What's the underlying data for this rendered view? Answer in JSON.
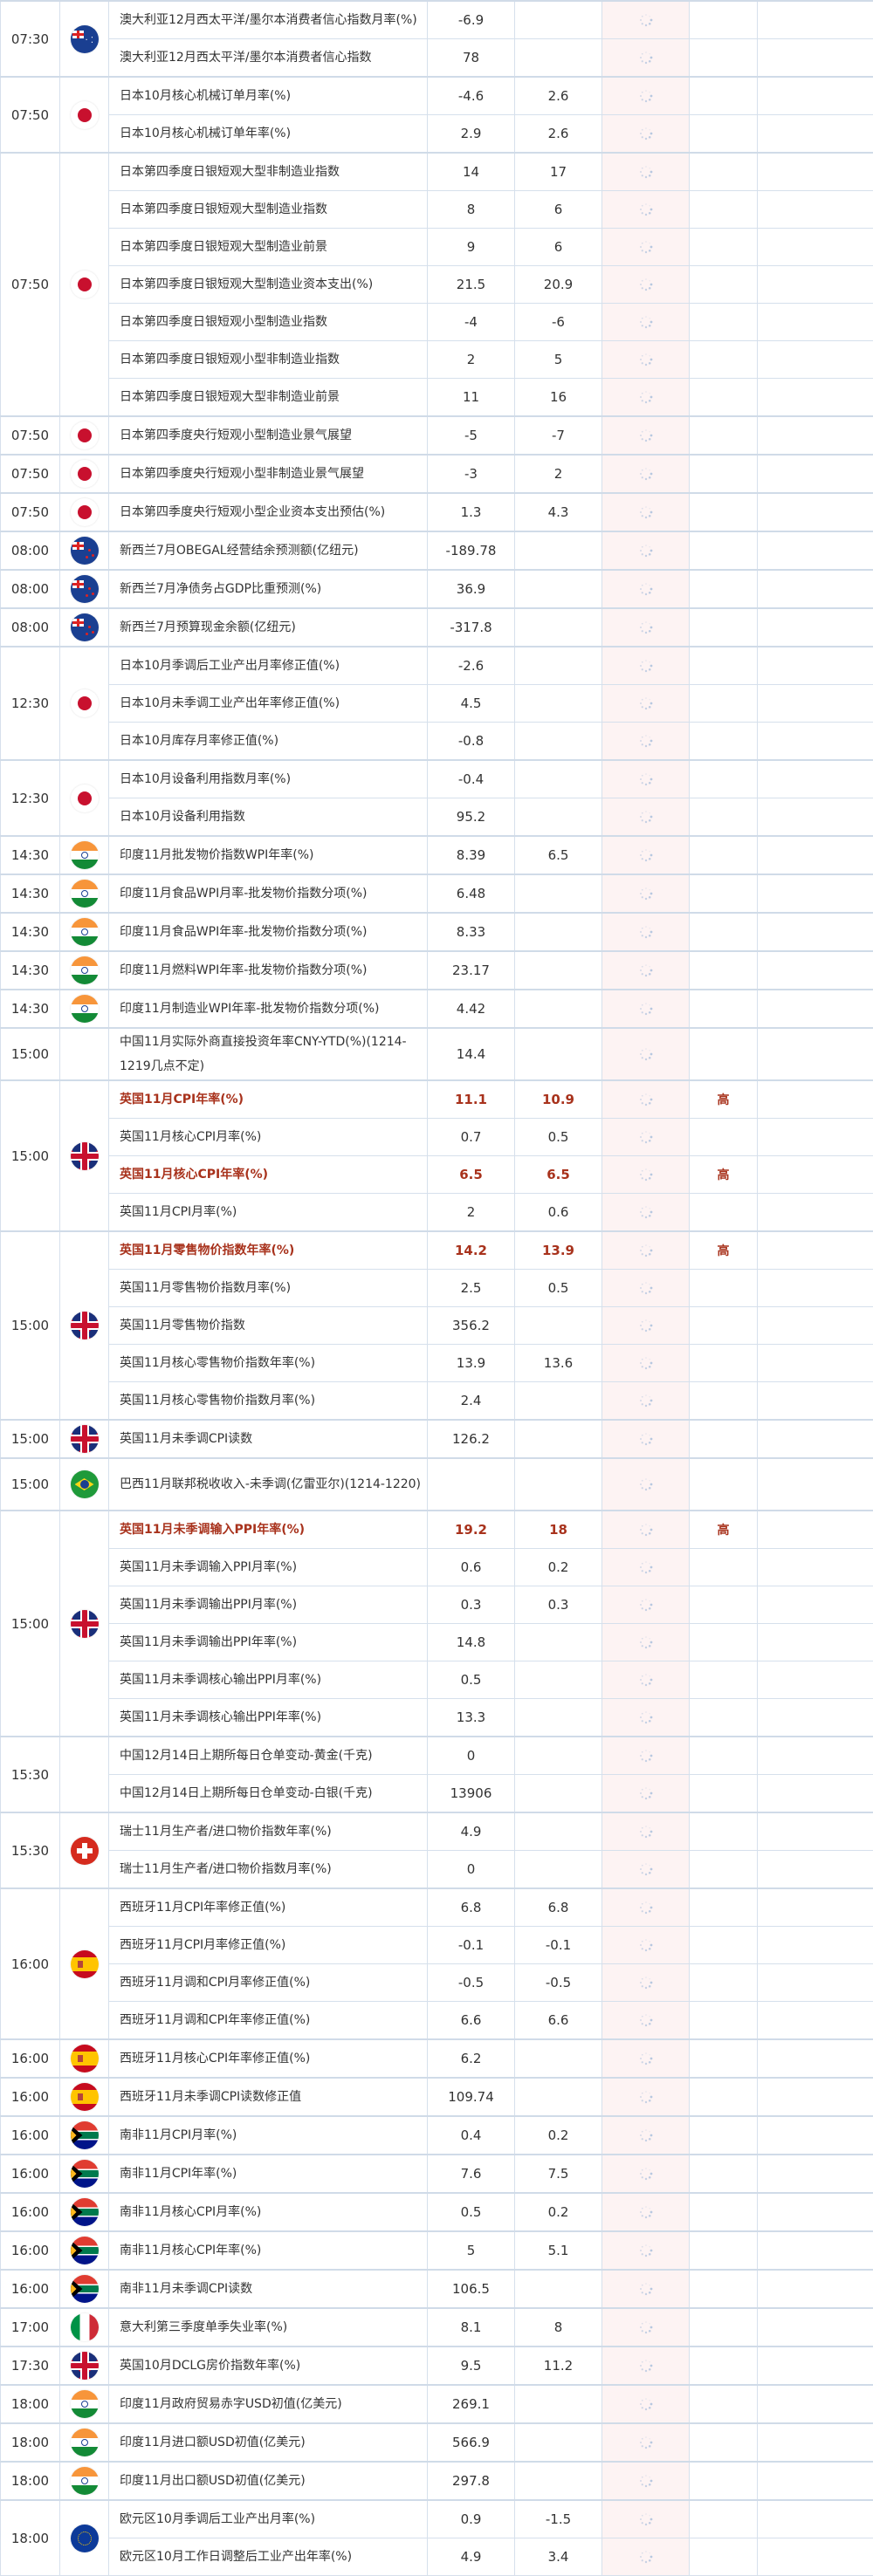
{
  "colors": {
    "highlight": "#a8321c",
    "grid": "#d6e0ec",
    "previous_bg": "#fdf3f3"
  },
  "groups": [
    {
      "time": "07:30",
      "flag": "flag-australia",
      "rows": [
        {
          "name": "澳大利亚12月西太平洋/墨尔本消费者信心指数月率(%)",
          "actual": "-6.9",
          "forecast": "",
          "importance": ""
        },
        {
          "name": "澳大利亚12月西太平洋/墨尔本消费者信心指数",
          "actual": "78",
          "forecast": "",
          "importance": ""
        }
      ]
    },
    {
      "time": "07:50",
      "flag": "flag-japan",
      "rows": [
        {
          "name": "日本10月核心机械订单月率(%)",
          "actual": "-4.6",
          "forecast": "2.6",
          "importance": ""
        },
        {
          "name": "日本10月核心机械订单年率(%)",
          "actual": "2.9",
          "forecast": "2.6",
          "importance": ""
        }
      ]
    },
    {
      "time": "07:50",
      "flag": "flag-japan",
      "rows": [
        {
          "name": "日本第四季度日银短观大型非制造业指数",
          "actual": "14",
          "forecast": "17",
          "importance": ""
        },
        {
          "name": "日本第四季度日银短观大型制造业指数",
          "actual": "8",
          "forecast": "6",
          "importance": ""
        },
        {
          "name": "日本第四季度日银短观大型制造业前景",
          "actual": "9",
          "forecast": "6",
          "importance": ""
        },
        {
          "name": "日本第四季度日银短观大型制造业资本支出(%)",
          "actual": "21.5",
          "forecast": "20.9",
          "importance": ""
        },
        {
          "name": "日本第四季度日银短观小型制造业指数",
          "actual": "-4",
          "forecast": "-6",
          "importance": ""
        },
        {
          "name": "日本第四季度日银短观小型非制造业指数",
          "actual": "2",
          "forecast": "5",
          "importance": ""
        },
        {
          "name": "日本第四季度日银短观大型非制造业前景",
          "actual": "11",
          "forecast": "16",
          "importance": ""
        }
      ]
    },
    {
      "time": "07:50",
      "flag": "flag-japan",
      "rows": [
        {
          "name": "日本第四季度央行短观小型制造业景气展望",
          "actual": "-5",
          "forecast": "-7",
          "importance": ""
        }
      ]
    },
    {
      "time": "07:50",
      "flag": "flag-japan",
      "rows": [
        {
          "name": "日本第四季度央行短观小型非制造业景气展望",
          "actual": "-3",
          "forecast": "2",
          "importance": ""
        }
      ]
    },
    {
      "time": "07:50",
      "flag": "flag-japan",
      "rows": [
        {
          "name": "日本第四季度央行短观小型企业资本支出预估(%)",
          "actual": "1.3",
          "forecast": "4.3",
          "importance": ""
        }
      ]
    },
    {
      "time": "08:00",
      "flag": "flag-new-zealand",
      "rows": [
        {
          "name": "新西兰7月OBEGAL经营结余预测额(亿纽元)",
          "actual": "-189.78",
          "forecast": "",
          "importance": ""
        }
      ]
    },
    {
      "time": "08:00",
      "flag": "flag-new-zealand",
      "rows": [
        {
          "name": "新西兰7月净债务占GDP比重预测(%)",
          "actual": "36.9",
          "forecast": "",
          "importance": ""
        }
      ]
    },
    {
      "time": "08:00",
      "flag": "flag-new-zealand",
      "rows": [
        {
          "name": "新西兰7月预算现金余额(亿纽元)",
          "actual": "-317.8",
          "forecast": "",
          "importance": ""
        }
      ]
    },
    {
      "time": "12:30",
      "flag": "flag-japan",
      "rows": [
        {
          "name": "日本10月季调后工业产出月率修正值(%)",
          "actual": "-2.6",
          "forecast": "",
          "importance": ""
        },
        {
          "name": "日本10月未季调工业产出年率修正值(%)",
          "actual": "4.5",
          "forecast": "",
          "importance": ""
        },
        {
          "name": "日本10月库存月率修正值(%)",
          "actual": "-0.8",
          "forecast": "",
          "importance": ""
        }
      ]
    },
    {
      "time": "12:30",
      "flag": "flag-japan",
      "rows": [
        {
          "name": "日本10月设备利用指数月率(%)",
          "actual": "-0.4",
          "forecast": "",
          "importance": ""
        },
        {
          "name": "日本10月设备利用指数",
          "actual": "95.2",
          "forecast": "",
          "importance": ""
        }
      ]
    },
    {
      "time": "14:30",
      "flag": "flag-india",
      "rows": [
        {
          "name": "印度11月批发物价指数WPI年率(%)",
          "actual": "8.39",
          "forecast": "6.5",
          "importance": ""
        }
      ]
    },
    {
      "time": "14:30",
      "flag": "flag-india",
      "rows": [
        {
          "name": "印度11月食品WPI月率-批发物价指数分项(%)",
          "actual": "6.48",
          "forecast": "",
          "importance": ""
        }
      ]
    },
    {
      "time": "14:30",
      "flag": "flag-india",
      "rows": [
        {
          "name": "印度11月食品WPI年率-批发物价指数分项(%)",
          "actual": "8.33",
          "forecast": "",
          "importance": ""
        }
      ]
    },
    {
      "time": "14:30",
      "flag": "flag-india",
      "rows": [
        {
          "name": "印度11月燃料WPI年率-批发物价指数分项(%)",
          "actual": "23.17",
          "forecast": "",
          "importance": ""
        }
      ]
    },
    {
      "time": "14:30",
      "flag": "flag-india",
      "rows": [
        {
          "name": "印度11月制造业WPI年率-批发物价指数分项(%)",
          "actual": "4.42",
          "forecast": "",
          "importance": ""
        }
      ]
    },
    {
      "time": "15:00",
      "flag": "",
      "rows": [
        {
          "name": "中国11月实际外商直接投资年率CNY-YTD(%)(1214-1219几点不定)",
          "actual": "14.4",
          "forecast": "",
          "importance": ""
        }
      ]
    },
    {
      "time": "15:00",
      "flag": "flag-united-kingdom",
      "rows": [
        {
          "name": "英国11月CPI年率(%)",
          "actual": "11.1",
          "forecast": "10.9",
          "importance": "高"
        },
        {
          "name": "英国11月核心CPI月率(%)",
          "actual": "0.7",
          "forecast": "0.5",
          "importance": ""
        },
        {
          "name": "英国11月核心CPI年率(%)",
          "actual": "6.5",
          "forecast": "6.5",
          "importance": "高"
        },
        {
          "name": "英国11月CPI月率(%)",
          "actual": "2",
          "forecast": "0.6",
          "importance": ""
        }
      ]
    },
    {
      "time": "15:00",
      "flag": "flag-united-kingdom",
      "rows": [
        {
          "name": "英国11月零售物价指数年率(%)",
          "actual": "14.2",
          "forecast": "13.9",
          "importance": "高"
        },
        {
          "name": "英国11月零售物价指数月率(%)",
          "actual": "2.5",
          "forecast": "0.5",
          "importance": ""
        },
        {
          "name": "英国11月零售物价指数",
          "actual": "356.2",
          "forecast": "",
          "importance": ""
        },
        {
          "name": "英国11月核心零售物价指数年率(%)",
          "actual": "13.9",
          "forecast": "13.6",
          "importance": ""
        },
        {
          "name": "英国11月核心零售物价指数月率(%)",
          "actual": "2.4",
          "forecast": "",
          "importance": ""
        }
      ]
    },
    {
      "time": "15:00",
      "flag": "flag-united-kingdom",
      "rows": [
        {
          "name": "英国11月未季调CPI读数",
          "actual": "126.2",
          "forecast": "",
          "importance": ""
        }
      ]
    },
    {
      "time": "15:00",
      "flag": "flag-brazil",
      "rows": [
        {
          "name": "巴西11月联邦税收收入-未季调(亿雷亚尔)(1214-1220)",
          "actual": "",
          "forecast": "",
          "importance": ""
        }
      ]
    },
    {
      "time": "15:00",
      "flag": "flag-united-kingdom",
      "rows": [
        {
          "name": "英国11月未季调输入PPI年率(%)",
          "actual": "19.2",
          "forecast": "18",
          "importance": "高"
        },
        {
          "name": "英国11月未季调输入PPI月率(%)",
          "actual": "0.6",
          "forecast": "0.2",
          "importance": ""
        },
        {
          "name": "英国11月未季调输出PPI月率(%)",
          "actual": "0.3",
          "forecast": "0.3",
          "importance": ""
        },
        {
          "name": "英国11月未季调输出PPI年率(%)",
          "actual": "14.8",
          "forecast": "",
          "importance": ""
        },
        {
          "name": "英国11月未季调核心输出PPI月率(%)",
          "actual": "0.5",
          "forecast": "",
          "importance": ""
        },
        {
          "name": "英国11月未季调核心输出PPI年率(%)",
          "actual": "13.3",
          "forecast": "",
          "importance": ""
        }
      ]
    },
    {
      "time": "15:30",
      "flag": "",
      "rows": [
        {
          "name": "中国12月14日上期所每日仓单变动-黄金(千克)",
          "actual": "0",
          "forecast": "",
          "importance": ""
        },
        {
          "name": "中国12月14日上期所每日仓单变动-白银(千克)",
          "actual": "13906",
          "forecast": "",
          "importance": ""
        }
      ]
    },
    {
      "time": "15:30",
      "flag": "flag-switzerland",
      "rows": [
        {
          "name": "瑞士11月生产者/进口物价指数年率(%)",
          "actual": "4.9",
          "forecast": "",
          "importance": ""
        },
        {
          "name": "瑞士11月生产者/进口物价指数月率(%)",
          "actual": "0",
          "forecast": "",
          "importance": ""
        }
      ]
    },
    {
      "time": "16:00",
      "flag": "flag-spain",
      "rows": [
        {
          "name": "西班牙11月CPI年率修正值(%)",
          "actual": "6.8",
          "forecast": "6.8",
          "importance": ""
        },
        {
          "name": "西班牙11月CPI月率修正值(%)",
          "actual": "-0.1",
          "forecast": "-0.1",
          "importance": ""
        },
        {
          "name": "西班牙11月调和CPI月率修正值(%)",
          "actual": "-0.5",
          "forecast": "-0.5",
          "importance": ""
        },
        {
          "name": "西班牙11月调和CPI年率修正值(%)",
          "actual": "6.6",
          "forecast": "6.6",
          "importance": ""
        }
      ]
    },
    {
      "time": "16:00",
      "flag": "flag-spain",
      "rows": [
        {
          "name": "西班牙11月核心CPI年率修正值(%)",
          "actual": "6.2",
          "forecast": "",
          "importance": ""
        }
      ]
    },
    {
      "time": "16:00",
      "flag": "flag-spain",
      "rows": [
        {
          "name": "西班牙11月未季调CPI读数修正值",
          "actual": "109.74",
          "forecast": "",
          "importance": ""
        }
      ]
    },
    {
      "time": "16:00",
      "flag": "flag-south-africa",
      "rows": [
        {
          "name": "南非11月CPI月率(%)",
          "actual": "0.4",
          "forecast": "0.2",
          "importance": ""
        }
      ]
    },
    {
      "time": "16:00",
      "flag": "flag-south-africa",
      "rows": [
        {
          "name": "南非11月CPI年率(%)",
          "actual": "7.6",
          "forecast": "7.5",
          "importance": ""
        }
      ]
    },
    {
      "time": "16:00",
      "flag": "flag-south-africa",
      "rows": [
        {
          "name": "南非11月核心CPI月率(%)",
          "actual": "0.5",
          "forecast": "0.2",
          "importance": ""
        }
      ]
    },
    {
      "time": "16:00",
      "flag": "flag-south-africa",
      "rows": [
        {
          "name": "南非11月核心CPI年率(%)",
          "actual": "5",
          "forecast": "5.1",
          "importance": ""
        }
      ]
    },
    {
      "time": "16:00",
      "flag": "flag-south-africa",
      "rows": [
        {
          "name": "南非11月未季调CPI读数",
          "actual": "106.5",
          "forecast": "",
          "importance": ""
        }
      ]
    },
    {
      "time": "17:00",
      "flag": "flag-italy",
      "rows": [
        {
          "name": "意大利第三季度单季失业率(%)",
          "actual": "8.1",
          "forecast": "8",
          "importance": ""
        }
      ]
    },
    {
      "time": "17:30",
      "flag": "flag-united-kingdom",
      "rows": [
        {
          "name": "英国10月DCLG房价指数年率(%)",
          "actual": "9.5",
          "forecast": "11.2",
          "importance": ""
        }
      ]
    },
    {
      "time": "18:00",
      "flag": "flag-india",
      "rows": [
        {
          "name": "印度11月政府贸易赤字USD初值(亿美元)",
          "actual": "269.1",
          "forecast": "",
          "importance": ""
        }
      ]
    },
    {
      "time": "18:00",
      "flag": "flag-india",
      "rows": [
        {
          "name": "印度11月进口额USD初值(亿美元)",
          "actual": "566.9",
          "forecast": "",
          "importance": ""
        }
      ]
    },
    {
      "time": "18:00",
      "flag": "flag-india",
      "rows": [
        {
          "name": "印度11月出口额USD初值(亿美元)",
          "actual": "297.8",
          "forecast": "",
          "importance": ""
        }
      ]
    },
    {
      "time": "18:00",
      "flag": "flag-eurozone",
      "rows": [
        {
          "name": "欧元区10月季调后工业产出月率(%)",
          "actual": "0.9",
          "forecast": "-1.5",
          "importance": ""
        },
        {
          "name": "欧元区10月工作日调整后工业产出年率(%)",
          "actual": "4.9",
          "forecast": "3.4",
          "importance": ""
        }
      ]
    }
  ]
}
